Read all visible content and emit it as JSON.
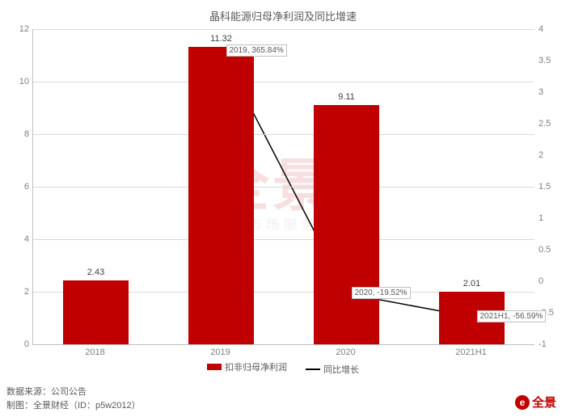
{
  "title": "晶科能源归母净利润及同比增速",
  "chart": {
    "type": "bar+line",
    "categories": [
      "2018",
      "2019",
      "2020",
      "2021H1"
    ],
    "bars": {
      "values": [
        2.43,
        11.32,
        9.11,
        2.01
      ],
      "color": "#c00000",
      "bar_width_frac": 0.52,
      "label_fontsize": 11
    },
    "line": {
      "values": [
        null,
        365.84,
        -19.52,
        -56.59
      ],
      "color": "#000000",
      "marker": "diamond",
      "marker_size": 7,
      "point_labels": [
        "",
        "2019, 365.84%",
        "2020, -19.52%",
        "2021H1, -56.59%"
      ]
    },
    "left_axis": {
      "min": 0,
      "max": 12,
      "step": 2,
      "label_color": "#7f7f7f"
    },
    "right_axis": {
      "min": -1,
      "max": 4,
      "step": 0.5,
      "label_color": "#7f7f7f"
    },
    "grid_color": "#d9d9d9",
    "plot_bg": "#ffffff"
  },
  "legend": {
    "bar": "扣非归母净利润",
    "line": "同比增长"
  },
  "footer": {
    "line1": "数据来源：公司公告",
    "line2": "制图：全景财经（ID：p5w2012）"
  },
  "watermark": {
    "big": "全景",
    "small": "资本市场服务平台"
  },
  "corner_logo": "全景"
}
